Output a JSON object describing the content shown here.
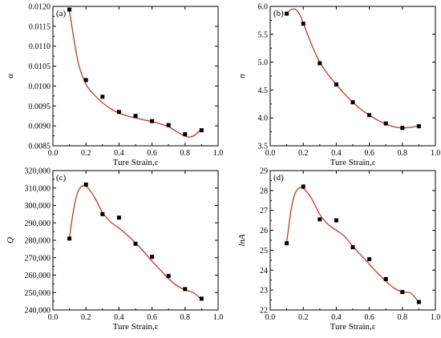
{
  "figure": {
    "colors": {
      "fit_line": "#c0392b",
      "marker": "#000000"
    }
  },
  "chart_data": [
    {
      "type": "scatter",
      "panel": "(a)",
      "xlabel": "Ture Strain,ε",
      "ylabel": "α",
      "xlim": [
        0.0,
        1.0
      ],
      "ylim": [
        0.0085,
        0.012
      ],
      "xticks": [
        0.0,
        0.2,
        0.4,
        0.6,
        0.8,
        1.0
      ],
      "xtick_labels": [
        "0.0",
        "0.2",
        "0.4",
        "0.6",
        "0.8",
        "1.0"
      ],
      "yticks": [
        0.0085,
        0.009,
        0.0095,
        0.01,
        0.0105,
        0.011,
        0.0115,
        0.012
      ],
      "ytick_labels": [
        "0.0085",
        "0.0090",
        "0.0095",
        "0.0100",
        "0.0105",
        "0.0110",
        "0.0115",
        "0.0120"
      ],
      "series": [
        {
          "x": [
            0.1,
            0.2,
            0.3,
            0.4,
            0.5,
            0.6,
            0.7,
            0.8,
            0.9
          ],
          "values": [
            0.01192,
            0.01015,
            0.00973,
            0.00935,
            0.00925,
            0.00912,
            0.00902,
            0.00879,
            0.00889
          ]
        }
      ],
      "fit_curve": {
        "x": [
          0.1,
          0.15,
          0.2,
          0.25,
          0.3,
          0.35,
          0.4,
          0.45,
          0.5,
          0.55,
          0.6,
          0.65,
          0.7,
          0.75,
          0.8,
          0.83,
          0.86,
          0.9
        ],
        "values": [
          0.0119,
          0.01065,
          0.01005,
          0.00978,
          0.00958,
          0.00943,
          0.00932,
          0.00925,
          0.0092,
          0.00915,
          0.00911,
          0.00905,
          0.00898,
          0.00885,
          0.00874,
          0.00872,
          0.00877,
          0.00893
        ]
      }
    },
    {
      "type": "scatter",
      "panel": "(b)",
      "xlabel": "Ture Strain,ε",
      "ylabel": "n",
      "xlim": [
        0.0,
        1.0
      ],
      "ylim": [
        3.5,
        6.0
      ],
      "xticks": [
        0.0,
        0.2,
        0.4,
        0.6,
        0.8,
        1.0
      ],
      "xtick_labels": [
        "0.0",
        "0.2",
        "0.4",
        "0.6",
        "0.8",
        "1.0"
      ],
      "yticks": [
        3.5,
        4.0,
        4.5,
        5.0,
        5.5,
        6.0
      ],
      "ytick_labels": [
        "3.5",
        "4.0",
        "4.5",
        "5.0",
        "5.5",
        "6.0"
      ],
      "series": [
        {
          "x": [
            0.1,
            0.2,
            0.3,
            0.4,
            0.5,
            0.6,
            0.7,
            0.8,
            0.9
          ],
          "values": [
            5.87,
            5.69,
            4.98,
            4.6,
            4.28,
            4.05,
            3.9,
            3.82,
            3.85
          ]
        }
      ],
      "fit_curve": {
        "x": [
          0.1,
          0.12,
          0.15,
          0.18,
          0.2,
          0.25,
          0.3,
          0.35,
          0.4,
          0.45,
          0.5,
          0.55,
          0.6,
          0.65,
          0.7,
          0.75,
          0.8,
          0.85,
          0.9
        ],
        "values": [
          5.85,
          5.93,
          5.95,
          5.85,
          5.7,
          5.32,
          5.0,
          4.78,
          4.6,
          4.43,
          4.28,
          4.15,
          4.05,
          3.96,
          3.89,
          3.84,
          3.82,
          3.83,
          3.86
        ]
      }
    },
    {
      "type": "scatter",
      "panel": "(c)",
      "xlabel": "Ture Strain,ε",
      "ylabel": "Q",
      "xlim": [
        0.0,
        1.0
      ],
      "ylim": [
        240000,
        320000
      ],
      "xticks": [
        0.0,
        0.2,
        0.4,
        0.6,
        0.8,
        1.0
      ],
      "xtick_labels": [
        "0.0",
        "0.2",
        "0.4",
        "0.6",
        "0.8",
        "1.0"
      ],
      "yticks": [
        240000,
        250000,
        260000,
        270000,
        280000,
        290000,
        300000,
        310000,
        320000
      ],
      "ytick_labels": [
        "240,000",
        "250,000",
        "260,000",
        "270,000",
        "280,000",
        "290,000",
        "300,000",
        "310,000",
        "320,000"
      ],
      "series": [
        {
          "x": [
            0.1,
            0.2,
            0.3,
            0.4,
            0.5,
            0.6,
            0.7,
            0.8,
            0.9
          ],
          "values": [
            281000,
            312000,
            295000,
            293000,
            278000,
            270500,
            259500,
            252000,
            246500
          ]
        }
      ],
      "fit_curve": {
        "x": [
          0.1,
          0.13,
          0.16,
          0.2,
          0.25,
          0.3,
          0.35,
          0.4,
          0.45,
          0.5,
          0.55,
          0.6,
          0.65,
          0.7,
          0.75,
          0.8,
          0.85,
          0.9
        ],
        "values": [
          281500,
          300000,
          309500,
          311000,
          305000,
          296000,
          290500,
          287000,
          283000,
          278500,
          273500,
          268000,
          263000,
          258000,
          254000,
          251500,
          250000,
          246000
        ]
      }
    },
    {
      "type": "scatter",
      "panel": "(d)",
      "xlabel": "Ture Strain,ε",
      "ylabel": "lnA",
      "xlim": [
        0.0,
        1.0
      ],
      "ylim": [
        22,
        29
      ],
      "xticks": [
        0.0,
        0.2,
        0.4,
        0.6,
        0.8,
        1.0
      ],
      "xtick_labels": [
        "0.0",
        "0.2",
        "0.4",
        "0.6",
        "0.8",
        "1.0"
      ],
      "yticks": [
        22,
        23,
        24,
        25,
        26,
        27,
        28,
        29
      ],
      "ytick_labels": [
        "22",
        "23",
        "24",
        "25",
        "26",
        "27",
        "28",
        "29"
      ],
      "series": [
        {
          "x": [
            0.1,
            0.2,
            0.3,
            0.4,
            0.5,
            0.6,
            0.7,
            0.8,
            0.9
          ],
          "values": [
            25.35,
            28.2,
            26.55,
            26.5,
            25.15,
            24.55,
            23.55,
            22.9,
            22.4
          ]
        }
      ],
      "fit_curve": {
        "x": [
          0.1,
          0.13,
          0.16,
          0.2,
          0.25,
          0.3,
          0.35,
          0.4,
          0.45,
          0.5,
          0.55,
          0.6,
          0.65,
          0.7,
          0.75,
          0.8,
          0.85,
          0.9
        ],
        "values": [
          25.4,
          27.2,
          28.0,
          28.1,
          27.6,
          26.8,
          26.3,
          26.0,
          25.7,
          25.2,
          24.75,
          24.3,
          23.85,
          23.45,
          23.1,
          22.9,
          22.85,
          22.4
        ]
      }
    }
  ]
}
